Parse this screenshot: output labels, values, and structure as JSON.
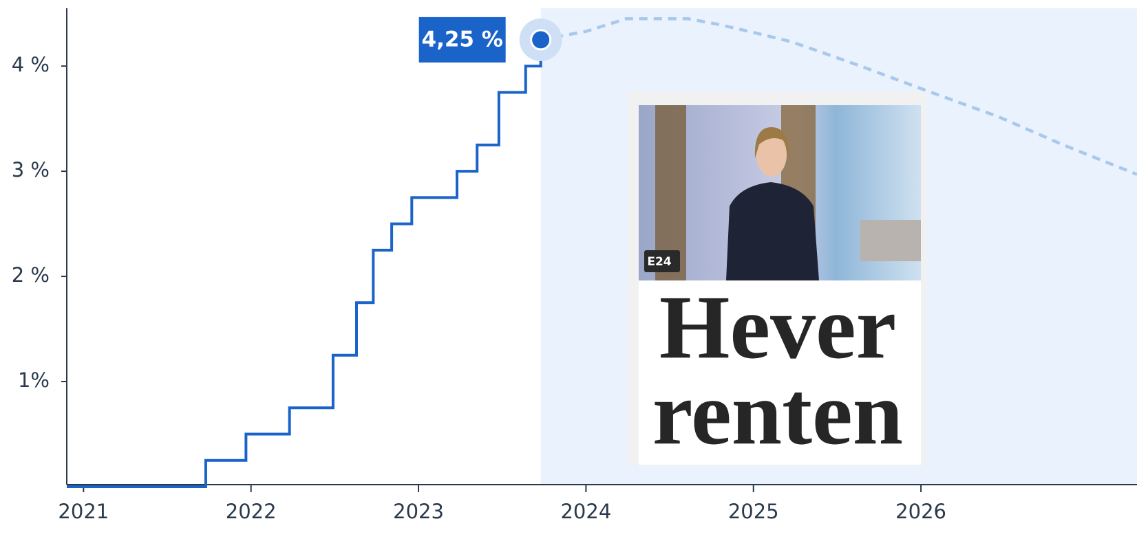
{
  "chart_data": {
    "type": "line",
    "xlim": [
      2020.9,
      2027.29
    ],
    "ylim": [
      0,
      4.55
    ],
    "xticks": [
      2021,
      2022,
      2023,
      2024,
      2025,
      2026
    ],
    "yticks": [
      {
        "value": 1,
        "label": "1%"
      },
      {
        "value": 2,
        "label": "2 %"
      },
      {
        "value": 3,
        "label": "3 %"
      },
      {
        "value": 4,
        "label": "4 %"
      }
    ],
    "forecast_start": 2023.73,
    "series": [
      {
        "style": "step",
        "color": "#1a63c9",
        "x": [
          2020.9,
          2021.73,
          2021.97,
          2022.23,
          2022.49,
          2022.63,
          2022.73,
          2022.84,
          2022.96,
          2023.23,
          2023.35,
          2023.48,
          2023.64,
          2023.73
        ],
        "values": [
          0,
          0.25,
          0.5,
          0.75,
          1.25,
          1.75,
          2.25,
          2.5,
          2.75,
          3.0,
          3.25,
          3.75,
          4.0,
          4.25
        ],
        "value_labels": [
          null,
          null,
          null,
          null,
          null,
          null,
          null,
          null,
          null,
          null,
          null,
          null,
          null,
          "4,25 %"
        ]
      },
      {
        "style": "dashed",
        "color": "#a9c8ea",
        "x": [
          2023.73,
          2024.0,
          2024.24,
          2024.61,
          2024.78,
          2025.0,
          2025.23,
          2025.64,
          2026.01,
          2026.46,
          2026.85,
          2027.29
        ],
        "values": [
          4.25,
          4.33,
          4.45,
          4.45,
          4.4,
          4.32,
          4.23,
          4.0,
          3.78,
          3.52,
          3.25,
          2.97
        ]
      }
    ]
  },
  "inset": {
    "badge": "E24",
    "headline": [
      "Hever",
      "renten"
    ]
  }
}
